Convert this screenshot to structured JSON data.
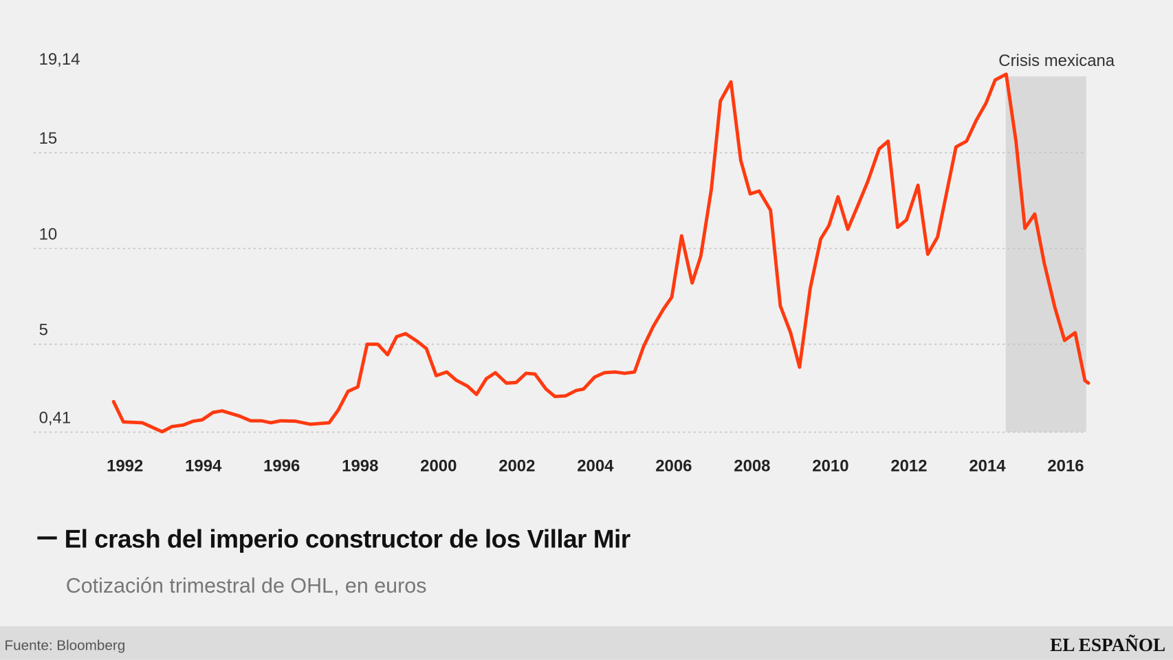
{
  "chart_data": {
    "type": "line",
    "title": "El crash del imperio constructor de los Villar Mir",
    "subtitle": "Cotización trimestral de OHL, en euros",
    "xlabel": "",
    "ylabel": "",
    "xlim": [
      1991.7,
      2016.6
    ],
    "ylim": [
      0.41,
      19.14
    ],
    "y_ticks": [
      {
        "value": 0.41,
        "label": "0,41",
        "grid": true
      },
      {
        "value": 5,
        "label": "5",
        "grid": true
      },
      {
        "value": 10,
        "label": "10",
        "grid": true
      },
      {
        "value": 15,
        "label": "15",
        "grid": true
      },
      {
        "value": 19.14,
        "label": "19,14",
        "grid": false
      }
    ],
    "x_ticks": [
      {
        "value": 1992,
        "label": "1992"
      },
      {
        "value": 1994,
        "label": "1994"
      },
      {
        "value": 1996,
        "label": "1996"
      },
      {
        "value": 1998,
        "label": "1998"
      },
      {
        "value": 2000,
        "label": "2000"
      },
      {
        "value": 2002,
        "label": "2002"
      },
      {
        "value": 2004,
        "label": "2004"
      },
      {
        "value": 2006,
        "label": "2006"
      },
      {
        "value": 2008,
        "label": "2008"
      },
      {
        "value": 2010,
        "label": "2010"
      },
      {
        "value": 2012,
        "label": "2012"
      },
      {
        "value": 2014,
        "label": "2014"
      },
      {
        "value": 2016,
        "label": "2016"
      }
    ],
    "grid": true,
    "annotation": {
      "label": "Crisis mexicana",
      "x_start": 2014.47,
      "x_end": 2016.56
    },
    "series": [
      {
        "name": "OHL",
        "color": "#ff3a10",
        "points": [
          [
            1991.71,
            2.0
          ],
          [
            1991.96,
            0.94
          ],
          [
            1992.44,
            0.9
          ],
          [
            1992.95,
            0.43
          ],
          [
            1993.2,
            0.7
          ],
          [
            1993.49,
            0.78
          ],
          [
            1993.74,
            0.98
          ],
          [
            1993.97,
            1.05
          ],
          [
            1994.25,
            1.44
          ],
          [
            1994.48,
            1.52
          ],
          [
            1994.92,
            1.25
          ],
          [
            1995.21,
            1.0
          ],
          [
            1995.49,
            1.0
          ],
          [
            1995.72,
            0.9
          ],
          [
            1995.97,
            1.0
          ],
          [
            1996.35,
            0.98
          ],
          [
            1996.73,
            0.82
          ],
          [
            1997.21,
            0.9
          ],
          [
            1997.44,
            1.56
          ],
          [
            1997.69,
            2.54
          ],
          [
            1997.94,
            2.77
          ],
          [
            1998.18,
            5.0
          ],
          [
            1998.45,
            5.0
          ],
          [
            1998.7,
            4.45
          ],
          [
            1998.93,
            5.39
          ],
          [
            1999.16,
            5.55
          ],
          [
            1999.46,
            5.15
          ],
          [
            1999.69,
            4.77
          ],
          [
            1999.94,
            3.36
          ],
          [
            2000.21,
            3.55
          ],
          [
            2000.45,
            3.12
          ],
          [
            2000.74,
            2.81
          ],
          [
            2000.97,
            2.38
          ],
          [
            2001.22,
            3.2
          ],
          [
            2001.45,
            3.51
          ],
          [
            2001.73,
            2.97
          ],
          [
            2001.98,
            3.0
          ],
          [
            2002.23,
            3.48
          ],
          [
            2002.46,
            3.44
          ],
          [
            2002.74,
            2.66
          ],
          [
            2002.97,
            2.27
          ],
          [
            2003.24,
            2.3
          ],
          [
            2003.51,
            2.58
          ],
          [
            2003.7,
            2.66
          ],
          [
            2003.98,
            3.28
          ],
          [
            2004.23,
            3.51
          ],
          [
            2004.5,
            3.55
          ],
          [
            2004.75,
            3.48
          ],
          [
            2005.0,
            3.55
          ],
          [
            2005.23,
            4.88
          ],
          [
            2005.47,
            5.9
          ],
          [
            2005.74,
            6.84
          ],
          [
            2005.95,
            7.46
          ],
          [
            2006.2,
            10.66
          ],
          [
            2006.47,
            8.2
          ],
          [
            2006.69,
            9.6
          ],
          [
            2006.96,
            13.1
          ],
          [
            2007.19,
            17.7
          ],
          [
            2007.46,
            18.7
          ],
          [
            2007.71,
            14.6
          ],
          [
            2007.95,
            12.85
          ],
          [
            2008.18,
            13.0
          ],
          [
            2008.47,
            12.0
          ],
          [
            2008.72,
            7.0
          ],
          [
            2008.98,
            5.6
          ],
          [
            2009.21,
            3.8
          ],
          [
            2009.48,
            7.9
          ],
          [
            2009.75,
            10.5
          ],
          [
            2009.96,
            11.2
          ],
          [
            2010.19,
            12.7
          ],
          [
            2010.44,
            11.0
          ],
          [
            2010.7,
            12.26
          ],
          [
            2010.95,
            13.5
          ],
          [
            2011.24,
            15.2
          ],
          [
            2011.47,
            15.6
          ],
          [
            2011.71,
            11.1
          ],
          [
            2011.94,
            11.5
          ],
          [
            2012.23,
            13.3
          ],
          [
            2012.48,
            9.7
          ],
          [
            2012.73,
            10.6
          ],
          [
            2012.95,
            12.8
          ],
          [
            2013.2,
            15.3
          ],
          [
            2013.47,
            15.6
          ],
          [
            2013.72,
            16.7
          ],
          [
            2013.97,
            17.6
          ],
          [
            2014.2,
            18.8
          ],
          [
            2014.48,
            19.1
          ],
          [
            2014.73,
            15.6
          ],
          [
            2014.96,
            11.05
          ],
          [
            2015.21,
            11.8
          ],
          [
            2015.45,
            9.25
          ],
          [
            2015.72,
            6.95
          ],
          [
            2015.97,
            5.2
          ],
          [
            2016.24,
            5.6
          ],
          [
            2016.49,
            3.1
          ],
          [
            2016.58,
            2.97
          ]
        ]
      }
    ]
  },
  "footer": {
    "source": "Fuente: Bloomberg",
    "logo": "EL ESPAÑOL"
  },
  "colors": {
    "background": "#f0f0f0",
    "footer": "#dcdcdc",
    "shade": "#d9d9d9",
    "line": "#ff3a10"
  }
}
